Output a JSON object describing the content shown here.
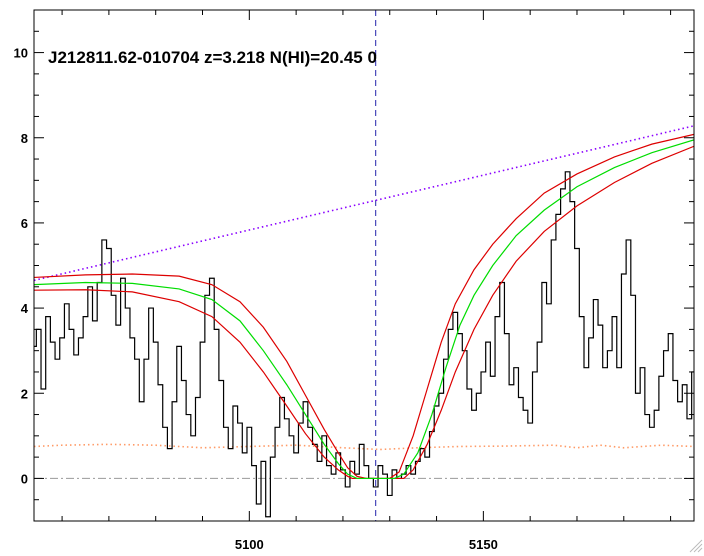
{
  "chart_data": {
    "type": "line",
    "title": "J212811.62-010704 z=3.218 N(HI)=20.45 0",
    "xlabel": "",
    "ylabel": "",
    "xlim": [
      5054,
      5195
    ],
    "ylim": [
      -1,
      11
    ],
    "x_ticks": [
      5100,
      5150
    ],
    "y_ticks": [
      0,
      2,
      4,
      6,
      8,
      10
    ],
    "x_minor_step": 10,
    "y_minor_step": 0.5,
    "grid": false,
    "legend": "none",
    "line_center_x": 5127.0,
    "zero_level": 0,
    "colors": {
      "flux": "#000000",
      "fit": "#00dd00",
      "fit_bounds": "#dd0000",
      "continuum": "#8a00ff",
      "error": "#ff9a66",
      "zero": "#999999",
      "center": "#2222aa"
    },
    "series": [
      {
        "key": "flux",
        "style": "step",
        "points": [
          [
            5054,
            3.1
          ],
          [
            5055,
            3.5
          ],
          [
            5056,
            2.1
          ],
          [
            5057,
            3.8
          ],
          [
            5058,
            3.2
          ],
          [
            5059,
            2.8
          ],
          [
            5060,
            3.3
          ],
          [
            5061,
            4.1
          ],
          [
            5062,
            3.5
          ],
          [
            5063,
            2.9
          ],
          [
            5064,
            3.3
          ],
          [
            5065,
            3.8
          ],
          [
            5066,
            4.5
          ],
          [
            5067,
            3.7
          ],
          [
            5068,
            4.6
          ],
          [
            5069,
            5.6
          ],
          [
            5070,
            5.4
          ],
          [
            5071,
            4.3
          ],
          [
            5072,
            3.6
          ],
          [
            5073,
            4.7
          ],
          [
            5074,
            4.0
          ],
          [
            5075,
            3.3
          ],
          [
            5076,
            2.8
          ],
          [
            5077,
            1.8
          ],
          [
            5078,
            2.8
          ],
          [
            5079,
            4.0
          ],
          [
            5080,
            3.2
          ],
          [
            5081,
            2.2
          ],
          [
            5082,
            1.2
          ],
          [
            5083,
            0.7
          ],
          [
            5084,
            1.8
          ],
          [
            5085,
            3.1
          ],
          [
            5086,
            2.3
          ],
          [
            5087,
            1.5
          ],
          [
            5088,
            1.0
          ],
          [
            5089,
            1.9
          ],
          [
            5090,
            3.2
          ],
          [
            5091,
            4.3
          ],
          [
            5092,
            4.7
          ],
          [
            5093,
            3.5
          ],
          [
            5094,
            2.3
          ],
          [
            5095,
            1.2
          ],
          [
            5096,
            0.7
          ],
          [
            5097,
            1.7
          ],
          [
            5098,
            1.3
          ],
          [
            5099,
            0.6
          ],
          [
            5100,
            1.2
          ],
          [
            5101,
            0.3
          ],
          [
            5102,
            -0.6
          ],
          [
            5103,
            0.4
          ],
          [
            5104,
            -0.9
          ],
          [
            5105,
            0.5
          ],
          [
            5106,
            1.2
          ],
          [
            5107,
            1.9
          ],
          [
            5108,
            1.4
          ],
          [
            5109,
            1.0
          ],
          [
            5110,
            0.6
          ],
          [
            5111,
            1.3
          ],
          [
            5112,
            1.8
          ],
          [
            5113,
            1.2
          ],
          [
            5114,
            0.8
          ],
          [
            5115,
            0.4
          ],
          [
            5116,
            1.0
          ],
          [
            5117,
            0.3
          ],
          [
            5118,
            0.1
          ],
          [
            5119,
            0.6
          ],
          [
            5120,
            0.2
          ],
          [
            5121,
            -0.2
          ],
          [
            5122,
            0.4
          ],
          [
            5123,
            0.1
          ],
          [
            5124,
            0.8
          ],
          [
            5125,
            0.3
          ],
          [
            5126,
            0.0
          ],
          [
            5127,
            -0.2
          ],
          [
            5128,
            0.3
          ],
          [
            5129,
            0.1
          ],
          [
            5130,
            -0.4
          ],
          [
            5131,
            0.2
          ],
          [
            5132,
            0.0
          ],
          [
            5133,
            0.1
          ],
          [
            5134,
            0.3
          ],
          [
            5135,
            0.1
          ],
          [
            5136,
            0.4
          ],
          [
            5137,
            0.7
          ],
          [
            5138,
            0.5
          ],
          [
            5139,
            1.1
          ],
          [
            5140,
            1.7
          ],
          [
            5141,
            2.0
          ],
          [
            5142,
            2.8
          ],
          [
            5143,
            3.5
          ],
          [
            5144,
            3.9
          ],
          [
            5145,
            3.4
          ],
          [
            5146,
            3.0
          ],
          [
            5147,
            2.1
          ],
          [
            5148,
            1.6
          ],
          [
            5149,
            2.0
          ],
          [
            5150,
            2.5
          ],
          [
            5151,
            3.2
          ],
          [
            5152,
            2.4
          ],
          [
            5153,
            3.8
          ],
          [
            5154,
            4.6
          ],
          [
            5155,
            3.4
          ],
          [
            5156,
            2.2
          ],
          [
            5157,
            2.6
          ],
          [
            5158,
            1.9
          ],
          [
            5159,
            1.6
          ],
          [
            5160,
            1.3
          ],
          [
            5161,
            2.5
          ],
          [
            5162,
            3.2
          ],
          [
            5163,
            4.6
          ],
          [
            5164,
            4.1
          ],
          [
            5165,
            5.6
          ],
          [
            5166,
            6.2
          ],
          [
            5167,
            6.8
          ],
          [
            5168,
            7.2
          ],
          [
            5169,
            6.5
          ],
          [
            5170,
            5.4
          ],
          [
            5171,
            3.8
          ],
          [
            5172,
            2.6
          ],
          [
            5173,
            3.3
          ],
          [
            5174,
            4.2
          ],
          [
            5175,
            3.6
          ],
          [
            5176,
            2.6
          ],
          [
            5177,
            3.0
          ],
          [
            5178,
            3.8
          ],
          [
            5179,
            2.6
          ],
          [
            5180,
            4.8
          ],
          [
            5181,
            5.6
          ],
          [
            5182,
            4.3
          ],
          [
            5183,
            2.0
          ],
          [
            5184,
            2.6
          ],
          [
            5185,
            1.5
          ],
          [
            5186,
            1.2
          ],
          [
            5187,
            1.6
          ],
          [
            5188,
            2.4
          ],
          [
            5189,
            3.0
          ],
          [
            5190,
            3.4
          ],
          [
            5191,
            2.3
          ],
          [
            5192,
            1.8
          ],
          [
            5193,
            2.2
          ],
          [
            5194,
            1.4
          ],
          [
            5195,
            2.5
          ]
        ]
      },
      {
        "key": "fit",
        "style": "line",
        "points": [
          [
            5054,
            4.55
          ],
          [
            5065,
            4.6
          ],
          [
            5075,
            4.58
          ],
          [
            5085,
            4.45
          ],
          [
            5092,
            4.2
          ],
          [
            5098,
            3.7
          ],
          [
            5103,
            3.0
          ],
          [
            5108,
            2.2
          ],
          [
            5112,
            1.5
          ],
          [
            5116,
            0.8
          ],
          [
            5119,
            0.35
          ],
          [
            5121,
            0.1
          ],
          [
            5123,
            0.0
          ],
          [
            5131,
            0.0
          ],
          [
            5133,
            0.1
          ],
          [
            5136,
            0.6
          ],
          [
            5139,
            1.5
          ],
          [
            5142,
            2.6
          ],
          [
            5145,
            3.6
          ],
          [
            5148,
            4.3
          ],
          [
            5152,
            5.0
          ],
          [
            5157,
            5.7
          ],
          [
            5163,
            6.3
          ],
          [
            5170,
            6.85
          ],
          [
            5178,
            7.3
          ],
          [
            5186,
            7.65
          ],
          [
            5195,
            7.95
          ]
        ]
      },
      {
        "key": "fit_upper",
        "style": "line",
        "points": [
          [
            5054,
            4.72
          ],
          [
            5065,
            4.78
          ],
          [
            5075,
            4.8
          ],
          [
            5085,
            4.75
          ],
          [
            5092,
            4.55
          ],
          [
            5098,
            4.15
          ],
          [
            5103,
            3.55
          ],
          [
            5108,
            2.75
          ],
          [
            5112,
            1.95
          ],
          [
            5116,
            1.15
          ],
          [
            5119,
            0.6
          ],
          [
            5121,
            0.25
          ],
          [
            5123,
            0.05
          ],
          [
            5125,
            0.0
          ],
          [
            5130,
            0.0
          ],
          [
            5132,
            0.15
          ],
          [
            5135,
            1.0
          ],
          [
            5138,
            2.1
          ],
          [
            5141,
            3.2
          ],
          [
            5144,
            4.1
          ],
          [
            5148,
            4.9
          ],
          [
            5152,
            5.5
          ],
          [
            5157,
            6.1
          ],
          [
            5163,
            6.7
          ],
          [
            5170,
            7.15
          ],
          [
            5178,
            7.55
          ],
          [
            5186,
            7.85
          ],
          [
            5195,
            8.08
          ]
        ]
      },
      {
        "key": "fit_lower",
        "style": "line",
        "points": [
          [
            5054,
            4.42
          ],
          [
            5065,
            4.43
          ],
          [
            5075,
            4.38
          ],
          [
            5085,
            4.15
          ],
          [
            5092,
            3.8
          ],
          [
            5098,
            3.2
          ],
          [
            5103,
            2.5
          ],
          [
            5108,
            1.7
          ],
          [
            5112,
            1.05
          ],
          [
            5116,
            0.5
          ],
          [
            5119,
            0.2
          ],
          [
            5121,
            0.05
          ],
          [
            5122,
            0.0
          ],
          [
            5133,
            0.0
          ],
          [
            5135,
            0.2
          ],
          [
            5138,
            0.8
          ],
          [
            5141,
            1.6
          ],
          [
            5144,
            2.5
          ],
          [
            5148,
            3.5
          ],
          [
            5152,
            4.3
          ],
          [
            5157,
            5.1
          ],
          [
            5163,
            5.8
          ],
          [
            5170,
            6.4
          ],
          [
            5178,
            6.95
          ],
          [
            5186,
            7.4
          ],
          [
            5195,
            7.8
          ]
        ]
      },
      {
        "key": "continuum",
        "style": "dotted",
        "points": [
          [
            5054,
            4.65
          ],
          [
            5195,
            8.28
          ]
        ]
      },
      {
        "key": "error",
        "style": "dotted",
        "points": [
          [
            5054,
            0.75
          ],
          [
            5060,
            0.78
          ],
          [
            5070,
            0.8
          ],
          [
            5080,
            0.78
          ],
          [
            5090,
            0.72
          ],
          [
            5100,
            0.75
          ],
          [
            5110,
            0.78
          ],
          [
            5120,
            0.72
          ],
          [
            5128,
            0.68
          ],
          [
            5136,
            0.72
          ],
          [
            5145,
            0.75
          ],
          [
            5155,
            0.76
          ],
          [
            5165,
            0.78
          ],
          [
            5170,
            0.72
          ],
          [
            5175,
            0.78
          ],
          [
            5180,
            0.72
          ],
          [
            5188,
            0.78
          ],
          [
            5195,
            0.75
          ]
        ]
      }
    ]
  }
}
